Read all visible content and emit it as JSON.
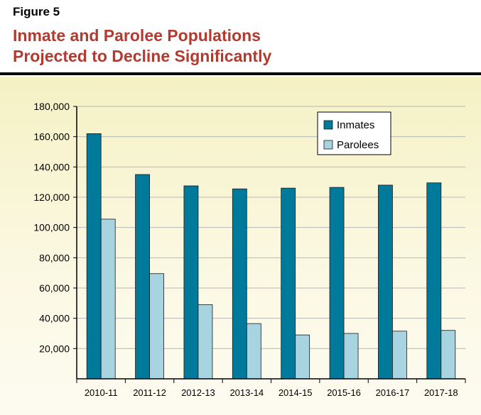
{
  "figure_label": "Figure 5",
  "title_lines": [
    "Inmate and Parolee Populations",
    "Projected to Decline Significantly"
  ],
  "colors": {
    "title": "#b23a2e",
    "inmates": "#007a9a",
    "parolees": "#a8d3e0",
    "grid": "#b8b8b8"
  },
  "chart_data": {
    "type": "bar",
    "title": "Inmate and Parolee Populations Projected to Decline Significantly",
    "xlabel": "",
    "ylabel": "",
    "ylim": [
      0,
      180000
    ],
    "yticks": [
      20000,
      40000,
      60000,
      80000,
      100000,
      120000,
      140000,
      160000,
      180000
    ],
    "ytick_labels": [
      "20,000",
      "40,000",
      "60,000",
      "80,000",
      "100,000",
      "120,000",
      "140,000",
      "160,000",
      "180,000"
    ],
    "grid": true,
    "legend_position": "top-right",
    "categories": [
      "2010-11",
      "2011-12",
      "2012-13",
      "2013-14",
      "2014-15",
      "2015-16",
      "2016-17",
      "2017-18"
    ],
    "series": [
      {
        "name": "Inmates",
        "values": [
          162000,
          135000,
          127500,
          125500,
          126000,
          126500,
          128000,
          129500
        ]
      },
      {
        "name": "Parolees",
        "values": [
          105500,
          69500,
          49000,
          36500,
          29000,
          30000,
          31500,
          32000
        ]
      }
    ]
  }
}
